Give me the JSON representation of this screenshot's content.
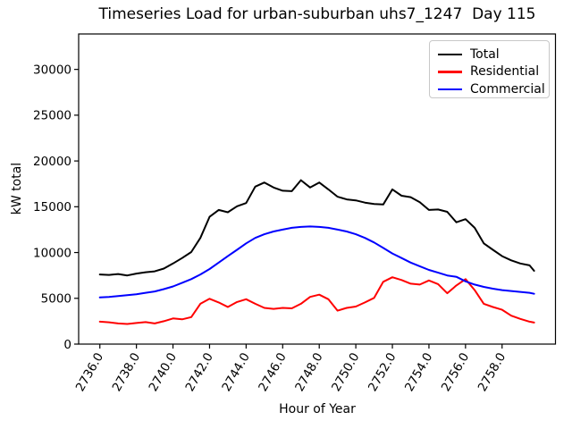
{
  "title": "Timeseries Load for urban-suburban uhs7_1247  Day 115",
  "chart_data": {
    "type": "line",
    "title": "Timeseries Load for urban-suburban uhs7_1247  Day 115",
    "xlabel": "Hour of Year",
    "ylabel": "kW total",
    "grid": false,
    "legend_position": "upper right",
    "xlim": [
      2734.84,
      2760.92
    ],
    "ylim": [
      0,
      33870
    ],
    "x_tick_values": [
      2736,
      2738,
      2740,
      2742,
      2744,
      2746,
      2748,
      2750,
      2752,
      2754,
      2756,
      2758
    ],
    "x_tick_labels": [
      "2736.0",
      "2738.0",
      "2740.0",
      "2742.0",
      "2744.0",
      "2746.0",
      "2748.0",
      "2750.0",
      "2752.0",
      "2754.0",
      "2756.0",
      "2758.0"
    ],
    "y_tick_values": [
      0,
      5000,
      10000,
      15000,
      20000,
      25000,
      30000
    ],
    "y_tick_labels": [
      "0",
      "5000",
      "10000",
      "15000",
      "20000",
      "25000",
      "30000"
    ],
    "x": [
      2736.0,
      2736.5,
      2737.0,
      2737.5,
      2738.0,
      2738.5,
      2739.0,
      2739.5,
      2740.0,
      2740.5,
      2741.0,
      2741.5,
      2742.0,
      2742.5,
      2743.0,
      2743.5,
      2744.0,
      2744.5,
      2745.0,
      2745.5,
      2746.0,
      2746.5,
      2747.0,
      2747.5,
      2748.0,
      2748.5,
      2749.0,
      2749.5,
      2750.0,
      2750.5,
      2751.0,
      2751.5,
      2752.0,
      2752.5,
      2753.0,
      2753.5,
      2754.0,
      2754.5,
      2755.0,
      2755.5,
      2756.0,
      2756.5,
      2757.0,
      2757.5,
      2758.0,
      2758.5,
      2759.0,
      2759.5,
      2759.75
    ],
    "series": [
      {
        "name": "Total",
        "color": "#000000",
        "values": [
          7600,
          7550,
          7650,
          7500,
          7700,
          7850,
          7950,
          8250,
          8800,
          9400,
          10050,
          11600,
          13900,
          14650,
          14400,
          15050,
          15400,
          17200,
          17650,
          17100,
          16750,
          16700,
          17900,
          17100,
          17650,
          16900,
          16100,
          15800,
          15700,
          15450,
          15300,
          15250,
          16900,
          16200,
          16050,
          15500,
          14650,
          14700,
          14450,
          13300,
          13650,
          12700,
          11000,
          10300,
          9600,
          9150,
          8800,
          8600,
          8000
        ]
      },
      {
        "name": "Residential",
        "color": "#ff0000",
        "values": [
          2450,
          2380,
          2250,
          2200,
          2300,
          2400,
          2250,
          2500,
          2800,
          2700,
          2950,
          4400,
          4950,
          4550,
          4050,
          4600,
          4900,
          4400,
          3950,
          3850,
          3950,
          3900,
          4400,
          5150,
          5400,
          4900,
          3650,
          3950,
          4100,
          4550,
          5050,
          6800,
          7300,
          7000,
          6600,
          6500,
          6950,
          6550,
          5550,
          6400,
          7100,
          5900,
          4400,
          4050,
          3750,
          3100,
          2750,
          2450,
          2350
        ]
      },
      {
        "name": "Commercial",
        "color": "#0000ff",
        "values": [
          5100,
          5150,
          5250,
          5350,
          5450,
          5600,
          5750,
          6000,
          6300,
          6700,
          7100,
          7600,
          8200,
          8900,
          9600,
          10300,
          11000,
          11600,
          12000,
          12300,
          12500,
          12700,
          12800,
          12850,
          12800,
          12700,
          12500,
          12300,
          12000,
          11600,
          11100,
          10500,
          9900,
          9400,
          8900,
          8500,
          8100,
          7800,
          7500,
          7350,
          6850,
          6500,
          6250,
          6050,
          5900,
          5800,
          5700,
          5600,
          5500
        ]
      }
    ]
  }
}
